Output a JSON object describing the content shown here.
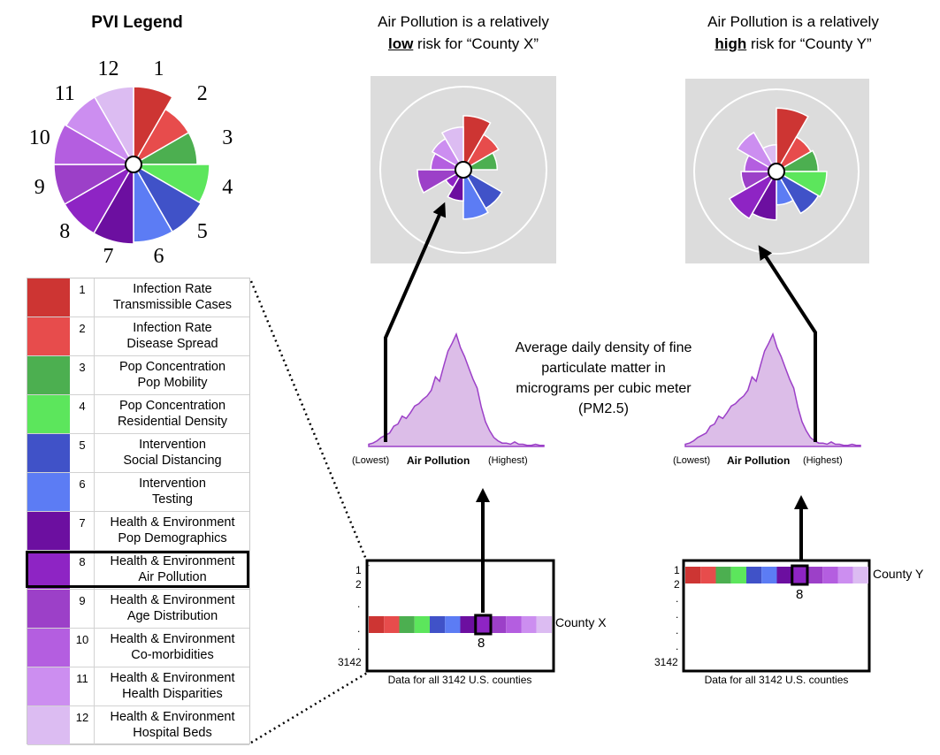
{
  "legend": {
    "title": "PVI Legend",
    "rows": [
      {
        "num": "1",
        "line1": "Infection Rate",
        "line2": "Transmissible Cases",
        "color": "#cd3533"
      },
      {
        "num": "2",
        "line1": "Infection Rate",
        "line2": "Disease Spread",
        "color": "#e74c4c"
      },
      {
        "num": "3",
        "line1": "Pop Concentration",
        "line2": "Pop Mobility",
        "color": "#4caf50"
      },
      {
        "num": "4",
        "line1": "Pop Concentration",
        "line2": "Residential Density",
        "color": "#5ce65c"
      },
      {
        "num": "5",
        "line1": "Intervention",
        "line2": "Social Distancing",
        "color": "#4052c8"
      },
      {
        "num": "6",
        "line1": "Intervention",
        "line2": "Testing",
        "color": "#5c7cf4"
      },
      {
        "num": "7",
        "line1": "Health & Environment",
        "line2": "Pop Demographics",
        "color": "#6c0fa0"
      },
      {
        "num": "8",
        "line1": "Health & Environment",
        "line2": "Air Pollution",
        "color": "#8e24c4"
      },
      {
        "num": "9",
        "line1": "Health & Environment",
        "line2": "Age Distribution",
        "color": "#9c40c8"
      },
      {
        "num": "10",
        "line1": "Health & Environment",
        "line2": "Co-morbidities",
        "color": "#b45ee0"
      },
      {
        "num": "11",
        "line1": "Health & Environment",
        "line2": "Health Disparities",
        "color": "#cc8ef0"
      },
      {
        "num": "12",
        "line1": "Health & Environment",
        "line2": "Hospital Beds",
        "color": "#dcbcf2"
      }
    ],
    "highlighted": "8"
  },
  "caption_x": {
    "pre": "Air Pollution is a relatively",
    "emph": "low",
    "post": "risk for “County X”"
  },
  "caption_y": {
    "pre": "Air Pollution is a relatively",
    "emph": "high",
    "post": "risk for “County Y”"
  },
  "avg_text": {
    "l1": "Average daily density of fine",
    "l2": "particulate matter in",
    "l3": "micrograms per cubic meter",
    "l4": "(PM2.5)"
  },
  "axis": {
    "lowest": "(Lowest)",
    "label": "Air Pollution",
    "highest": "(Highest)"
  },
  "box_x": {
    "county": "County X",
    "marker": "8",
    "caption": "Data for all 3142 U.S. counties",
    "row_labels": [
      "1",
      "2",
      ".",
      ".",
      ".",
      "3142"
    ]
  },
  "box_y": {
    "county": "County Y",
    "marker": "8",
    "caption": "Data for all 3142 U.S. counties",
    "row_labels": [
      "1",
      "2",
      ".",
      ".",
      ".",
      ".",
      "3142"
    ]
  },
  "pie_labels": [
    "1",
    "2",
    "3",
    "4",
    "5",
    "6",
    "7",
    "8",
    "9",
    "10",
    "11",
    "12"
  ],
  "pie_x_values": [
    0.62,
    0.42,
    0.32,
    0.0,
    0.48,
    0.55,
    0.28,
    0.12,
    0.5,
    0.3,
    0.35,
    0.45
  ],
  "pie_y_values": [
    0.78,
    0.42,
    0.45,
    0.58,
    0.55,
    0.32,
    0.55,
    0.64,
    0.35,
    0.3,
    0.5,
    0.22
  ]
}
